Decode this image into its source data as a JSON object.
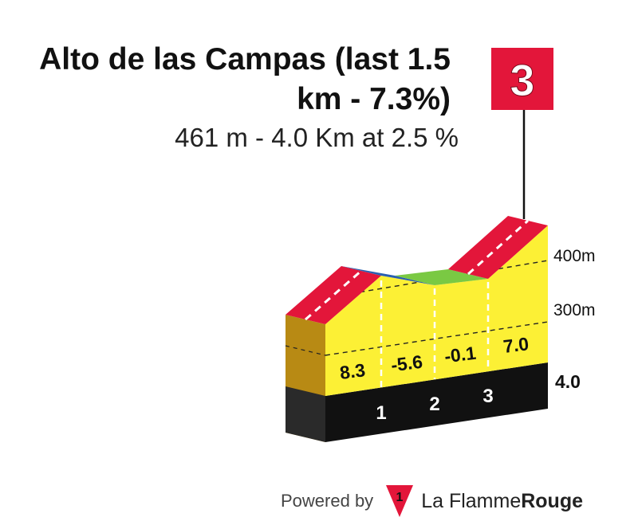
{
  "climb": {
    "title": "Alto de las Campas (last 1.5 km - 7.3%)",
    "subtitle": "461 m - 4.0 Km at 2.5 %",
    "category": "3"
  },
  "chart_data": {
    "type": "area",
    "title": "Alto de las Campas (last 1.5 km - 7.3%)",
    "subtitle": "461 m - 4.0 Km at 2.5 %",
    "x_unit": "km",
    "km_marks": [
      "1",
      "2",
      "3"
    ],
    "total_distance_label": "4.0",
    "y_tick_labels": [
      "300m",
      "400m"
    ],
    "segments": [
      {
        "km_start": 0,
        "km_end": 1,
        "gradient": 8.3,
        "gradient_label": "8.3",
        "color": "#e3163a"
      },
      {
        "km_start": 1,
        "km_end": 2,
        "gradient": -5.6,
        "gradient_label": "-5.6",
        "color": "#2a5fb0"
      },
      {
        "km_start": 2,
        "km_end": 3,
        "gradient": -0.1,
        "gradient_label": "-0.1",
        "color": "#7ac943"
      },
      {
        "km_start": 3,
        "km_end": 4,
        "gradient": 7.0,
        "gradient_label": "7.0",
        "color": "#e3163a"
      }
    ],
    "summit_elevation_m": 461,
    "category_marker": "3",
    "colors": {
      "fill": "#fcf035",
      "base": "#111111",
      "side": "#b88a14",
      "marker": "#e3163a"
    }
  },
  "footer": {
    "powered_by": "Powered by",
    "brand_a": "La Flamme",
    "brand_b": "Rouge",
    "brand_icon_number": "1"
  }
}
